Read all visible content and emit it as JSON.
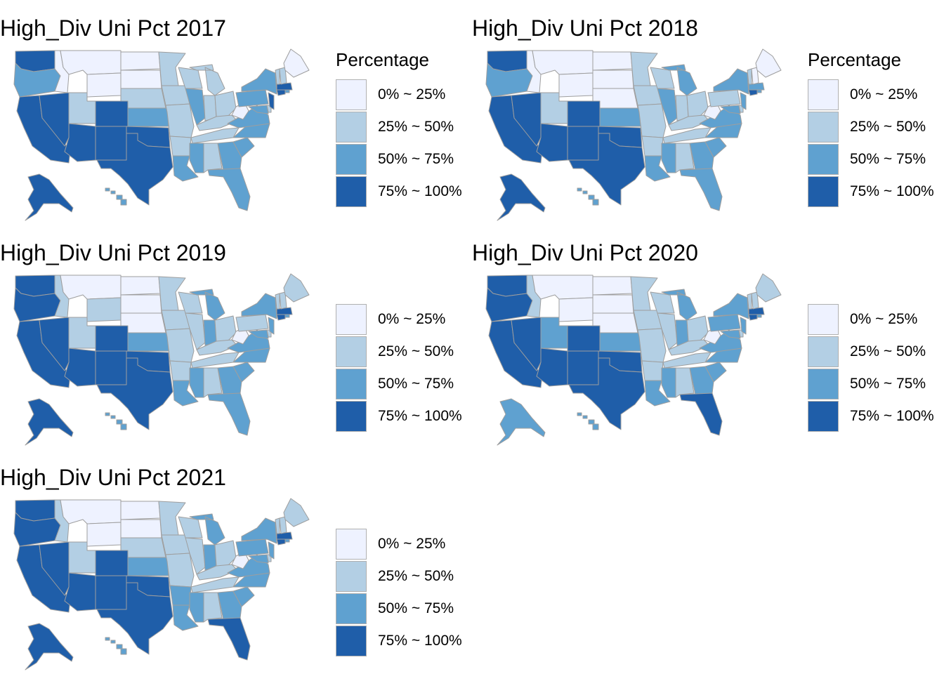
{
  "colors": {
    "q1": "#eef2ff",
    "q2": "#b3cfe4",
    "q3": "#5fa1d0",
    "q4": "#1f5ea9",
    "border": "#9e9e9e"
  },
  "legend": {
    "title": "Percentage",
    "items": [
      {
        "label": "0% ~ 25%",
        "color": "#eef2ff"
      },
      {
        "label": "25% ~ 50%",
        "color": "#b3cfe4"
      },
      {
        "label": "50% ~ 75%",
        "color": "#5fa1d0"
      },
      {
        "label": "75% ~ 100%",
        "color": "#1f5ea9"
      }
    ]
  },
  "panels": [
    {
      "title": "High_Div Uni Pct 2017",
      "show_legend_title": true,
      "bins": {
        "WA": 4,
        "OR": 3,
        "CA": 4,
        "NV": 4,
        "ID": 1,
        "MT": 1,
        "WY": 1,
        "UT": 2,
        "CO": 4,
        "AZ": 4,
        "NM": 4,
        "ND": 1,
        "SD": 1,
        "NE": 2,
        "KS": 3,
        "OK": 4,
        "TX": 4,
        "MN": 2,
        "IA": 2,
        "MO": 2,
        "AR": 2,
        "LA": 3,
        "WI": 2,
        "IL": 3,
        "MI": 2,
        "IN": 2,
        "OH": 2,
        "KY": 2,
        "TN": 2,
        "MS": 3,
        "AL": 2,
        "GA": 3,
        "FL": 3,
        "SC": 3,
        "NC": 3,
        "VA": 3,
        "WV": 1,
        "PA": 3,
        "NY": 3,
        "MD": 3,
        "DE": 2,
        "NJ": 4,
        "CT": 4,
        "RI": 3,
        "MA": 4,
        "VT": 2,
        "NH": 2,
        "ME": 1,
        "AK": 4,
        "HI": 3
      }
    },
    {
      "title": "High_Div Uni Pct 2018",
      "show_legend_title": true,
      "bins": {
        "WA": 4,
        "OR": 3,
        "CA": 4,
        "NV": 4,
        "ID": 1,
        "MT": 1,
        "WY": 1,
        "UT": 2,
        "CO": 4,
        "AZ": 4,
        "NM": 4,
        "ND": 1,
        "SD": 1,
        "NE": 1,
        "KS": 3,
        "OK": 4,
        "TX": 4,
        "MN": 2,
        "IA": 2,
        "MO": 2,
        "AR": 2,
        "LA": 3,
        "WI": 2,
        "IL": 3,
        "MI": 3,
        "IN": 2,
        "OH": 2,
        "KY": 2,
        "TN": 2,
        "MS": 3,
        "AL": 2,
        "GA": 3,
        "FL": 3,
        "SC": 3,
        "NC": 3,
        "VA": 3,
        "WV": 1,
        "PA": 2,
        "NY": 3,
        "MD": 3,
        "DE": 2,
        "NJ": 3,
        "CT": 4,
        "RI": 3,
        "MA": 3,
        "VT": 2,
        "NH": 1,
        "ME": 1,
        "AK": 4,
        "HI": 3
      }
    },
    {
      "title": "High_Div Uni Pct 2019",
      "show_legend_title": false,
      "bins": {
        "WA": 4,
        "OR": 4,
        "CA": 4,
        "NV": 4,
        "ID": 2,
        "MT": 1,
        "WY": 2,
        "UT": 2,
        "CO": 4,
        "AZ": 4,
        "NM": 4,
        "ND": 1,
        "SD": 1,
        "NE": 1,
        "KS": 3,
        "OK": 4,
        "TX": 4,
        "MN": 2,
        "IA": 2,
        "MO": 2,
        "AR": 2,
        "LA": 3,
        "WI": 2,
        "IL": 2,
        "MI": 3,
        "IN": 3,
        "OH": 2,
        "KY": 2,
        "TN": 2,
        "MS": 3,
        "AL": 2,
        "GA": 3,
        "FL": 3,
        "SC": 3,
        "NC": 3,
        "VA": 3,
        "WV": 1,
        "PA": 2,
        "NY": 3,
        "MD": 3,
        "DE": 2,
        "NJ": 3,
        "CT": 4,
        "RI": 3,
        "MA": 4,
        "VT": 2,
        "NH": 2,
        "ME": 2,
        "AK": 4,
        "HI": 3
      }
    },
    {
      "title": "High_Div Uni Pct 2020",
      "show_legend_title": false,
      "bins": {
        "WA": 4,
        "OR": 4,
        "CA": 4,
        "NV": 4,
        "ID": 2,
        "MT": 1,
        "WY": 1,
        "UT": 3,
        "CO": 4,
        "AZ": 4,
        "NM": 4,
        "ND": 1,
        "SD": 1,
        "NE": 1,
        "KS": 3,
        "OK": 4,
        "TX": 4,
        "MN": 2,
        "IA": 2,
        "MO": 2,
        "AR": 2,
        "LA": 3,
        "WI": 2,
        "IL": 2,
        "MI": 3,
        "IN": 3,
        "OH": 2,
        "KY": 2,
        "TN": 2,
        "MS": 3,
        "AL": 2,
        "GA": 3,
        "FL": 4,
        "SC": 3,
        "NC": 3,
        "VA": 3,
        "WV": 1,
        "PA": 3,
        "NY": 3,
        "MD": 3,
        "DE": 2,
        "NJ": 3,
        "CT": 4,
        "RI": 3,
        "MA": 4,
        "VT": 2,
        "NH": 2,
        "ME": 2,
        "AK": 3,
        "HI": 3
      }
    },
    {
      "title": "High_Div Uni Pct 2021",
      "show_legend_title": false,
      "bins": {
        "WA": 4,
        "OR": 4,
        "CA": 4,
        "NV": 4,
        "ID": 2,
        "MT": 1,
        "WY": 1,
        "UT": 2,
        "CO": 4,
        "AZ": 4,
        "NM": 4,
        "ND": 1,
        "SD": 1,
        "NE": 2,
        "KS": 3,
        "OK": 4,
        "TX": 4,
        "MN": 2,
        "IA": 2,
        "MO": 2,
        "AR": 3,
        "LA": 3,
        "WI": 2,
        "IL": 2,
        "MI": 3,
        "IN": 3,
        "OH": 2,
        "KY": 2,
        "TN": 2,
        "MS": 3,
        "AL": 2,
        "GA": 3,
        "FL": 4,
        "SC": 3,
        "NC": 3,
        "VA": 3,
        "WV": 1,
        "PA": 3,
        "NY": 3,
        "MD": 3,
        "DE": 2,
        "NJ": 3,
        "CT": 4,
        "RI": 3,
        "MA": 4,
        "VT": 2,
        "NH": 2,
        "ME": 2,
        "AK": 4,
        "HI": 3
      }
    }
  ]
}
